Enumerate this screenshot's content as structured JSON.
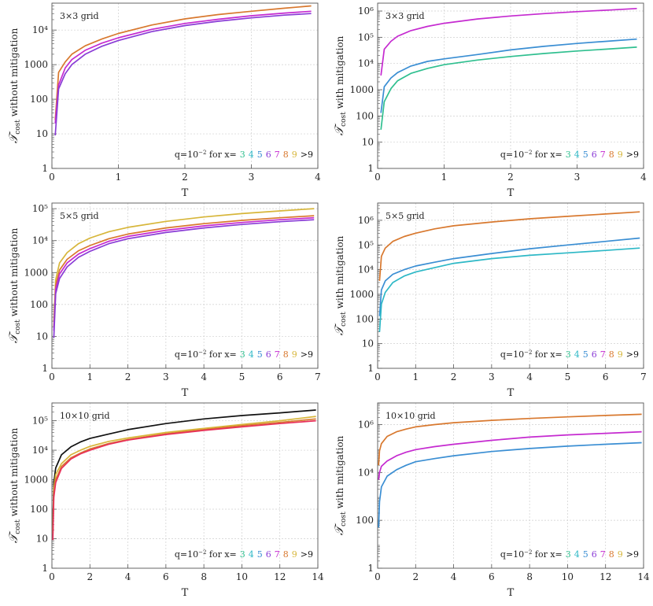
{
  "legend": {
    "prefix": "q=10",
    "exp": "−2",
    "for_x": " for x=",
    "items": [
      "3",
      "4",
      "5",
      "6",
      "7",
      "8",
      "9",
      ">9"
    ],
    "colors": [
      "#2fbf8f",
      "#2db8c6",
      "#3a8ed3",
      "#8a3cd6",
      "#c52ad0",
      "#d8782e",
      "#d7b63a",
      "#111111"
    ]
  },
  "chart_data": [
    {
      "type": "line",
      "panel": "A",
      "title": "3×3 grid",
      "xlabel": "T",
      "ylabel_prefix": "𝒯",
      "ylabel_sub": "cost",
      "ylabel_suffix": " without mitigation",
      "xlim": [
        0,
        4
      ],
      "ylog": [
        1,
        60000
      ],
      "xticks": [
        0,
        1,
        2,
        3,
        4
      ],
      "yticks": [
        {
          "v": 1,
          "t": "1"
        },
        {
          "v": 10,
          "t": "10"
        },
        {
          "v": 100,
          "t": "100"
        },
        {
          "v": 1000,
          "t": "1000"
        },
        {
          "v": 10000,
          "t": "10⁴"
        }
      ],
      "series": [
        {
          "name": "upper",
          "color": "#d8782e",
          "x": [
            0.05,
            0.1,
            0.2,
            0.3,
            0.5,
            0.75,
            1.0,
            1.5,
            2.0,
            2.5,
            3.0,
            3.5,
            3.9
          ],
          "values": [
            25,
            600,
            1200,
            2000,
            3500,
            5500,
            8000,
            14000,
            21000,
            28000,
            35000,
            43000,
            50000
          ]
        },
        {
          "name": "middle",
          "color": "#c52ad0",
          "x": [
            0.05,
            0.1,
            0.2,
            0.3,
            0.5,
            0.75,
            1.0,
            1.5,
            2.0,
            2.5,
            3.0,
            3.5,
            3.9
          ],
          "values": [
            20,
            260,
            800,
            1400,
            2600,
            4200,
            6000,
            10500,
            15500,
            20500,
            26000,
            31000,
            35000
          ]
        },
        {
          "name": "lower",
          "color": "#8a3cd6",
          "x": [
            0.05,
            0.1,
            0.2,
            0.3,
            0.5,
            0.75,
            1.0,
            1.5,
            2.0,
            2.5,
            3.0,
            3.5,
            3.9
          ],
          "values": [
            9,
            200,
            550,
            1000,
            2000,
            3400,
            5000,
            9000,
            13500,
            18000,
            22500,
            27000,
            30000
          ]
        }
      ]
    },
    {
      "type": "line",
      "panel": "B",
      "title": "3×3 grid",
      "xlabel": "T",
      "ylabel_prefix": "𝒯",
      "ylabel_sub": "cost",
      "ylabel_suffix": " with mitigation",
      "xlim": [
        0,
        4
      ],
      "ylog": [
        1,
        2000000
      ],
      "xticks": [
        0,
        1,
        2,
        3,
        4
      ],
      "yticks": [
        {
          "v": 1,
          "t": "1"
        },
        {
          "v": 10,
          "t": "10"
        },
        {
          "v": 100,
          "t": "100"
        },
        {
          "v": 1000,
          "t": "1000"
        },
        {
          "v": 10000,
          "t": "10⁴"
        },
        {
          "v": 100000,
          "t": "10⁵"
        },
        {
          "v": 1000000,
          "t": "10⁶"
        }
      ],
      "series": [
        {
          "name": "upper",
          "color": "#c52ad0",
          "x": [
            0.05,
            0.1,
            0.2,
            0.3,
            0.5,
            0.75,
            1.0,
            1.5,
            2.0,
            2.5,
            3.0,
            3.5,
            3.9
          ],
          "values": [
            3500,
            35000,
            70000,
            110000,
            180000,
            260000,
            340000,
            500000,
            650000,
            800000,
            950000,
            1100000,
            1250000
          ]
        },
        {
          "name": "middle",
          "color": "#3a8ed3",
          "x": [
            0.05,
            0.1,
            0.2,
            0.3,
            0.5,
            0.75,
            1.0,
            1.5,
            2.0,
            2.5,
            3.0,
            3.5,
            3.9
          ],
          "values": [
            130,
            1300,
            2800,
            4500,
            8000,
            12000,
            15000,
            22000,
            33000,
            45000,
            58000,
            72000,
            85000
          ]
        },
        {
          "name": "lower",
          "color": "#2fbf8f",
          "x": [
            0.05,
            0.1,
            0.2,
            0.3,
            0.5,
            0.75,
            1.0,
            1.5,
            2.0,
            2.5,
            3.0,
            3.5,
            3.9
          ],
          "values": [
            30,
            350,
            1100,
            2200,
            4200,
            6500,
            9000,
            13500,
            18500,
            24000,
            30000,
            36000,
            42000
          ]
        }
      ]
    },
    {
      "type": "line",
      "panel": "C",
      "title": "5×5 grid",
      "xlabel": "T",
      "ylabel_prefix": "𝒯",
      "ylabel_sub": "cost",
      "ylabel_suffix": " without mitigation",
      "xlim": [
        0,
        7
      ],
      "ylog": [
        1,
        150000
      ],
      "xticks": [
        0,
        1,
        2,
        3,
        4,
        5,
        6,
        7
      ],
      "yticks": [
        {
          "v": 1,
          "t": "1"
        },
        {
          "v": 10,
          "t": "10"
        },
        {
          "v": 100,
          "t": "100"
        },
        {
          "v": 1000,
          "t": "1000"
        },
        {
          "v": 10000,
          "t": "10⁴"
        },
        {
          "v": 100000,
          "t": "10⁵"
        }
      ],
      "series": [
        {
          "name": "upper",
          "color": "#d7b63a",
          "x": [
            0.05,
            0.1,
            0.2,
            0.4,
            0.7,
            1.0,
            1.5,
            2.0,
            3.0,
            4.0,
            5.0,
            6.0,
            6.9
          ],
          "values": [
            30,
            600,
            2000,
            4200,
            8000,
            12000,
            19000,
            26000,
            40000,
            55000,
            70000,
            85000,
            100000
          ]
        },
        {
          "name": "mid1",
          "color": "#d8782e",
          "x": [
            0.05,
            0.1,
            0.2,
            0.4,
            0.7,
            1.0,
            1.5,
            2.0,
            3.0,
            4.0,
            5.0,
            6.0,
            6.9
          ],
          "values": [
            20,
            400,
            1200,
            2600,
            4800,
            7000,
            11500,
            16000,
            25000,
            34000,
            43000,
            52000,
            60000
          ]
        },
        {
          "name": "mid2",
          "color": "#c52ad0",
          "x": [
            0.05,
            0.1,
            0.2,
            0.4,
            0.7,
            1.0,
            1.5,
            2.0,
            3.0,
            4.0,
            5.0,
            6.0,
            6.9
          ],
          "values": [
            15,
            300,
            900,
            2000,
            3800,
            5600,
            9500,
            13500,
            21000,
            29000,
            37000,
            45000,
            52000
          ]
        },
        {
          "name": "lower",
          "color": "#8a3cd6",
          "x": [
            0.05,
            0.1,
            0.2,
            0.4,
            0.7,
            1.0,
            1.5,
            2.0,
            3.0,
            4.0,
            5.0,
            6.0,
            6.9
          ],
          "values": [
            9,
            220,
            650,
            1500,
            3000,
            4600,
            8000,
            11500,
            18000,
            25000,
            32000,
            39000,
            45000
          ]
        }
      ]
    },
    {
      "type": "line",
      "panel": "D",
      "title": "5×5 grid",
      "xlabel": "T",
      "ylabel_prefix": "𝒯",
      "ylabel_sub": "cost",
      "ylabel_suffix": " with mitigation",
      "xlim": [
        0,
        7
      ],
      "ylog": [
        1,
        5000000
      ],
      "xticks": [
        0,
        1,
        2,
        3,
        4,
        5,
        6,
        7
      ],
      "yticks": [
        {
          "v": 1,
          "t": "1"
        },
        {
          "v": 10,
          "t": "10"
        },
        {
          "v": 100,
          "t": "100"
        },
        {
          "v": 1000,
          "t": "1000"
        },
        {
          "v": 10000,
          "t": "10⁴"
        },
        {
          "v": 100000,
          "t": "10⁵"
        },
        {
          "v": 1000000,
          "t": "10⁶"
        }
      ],
      "series": [
        {
          "name": "upper",
          "color": "#d8782e",
          "x": [
            0.05,
            0.1,
            0.2,
            0.4,
            0.7,
            1.0,
            1.5,
            2.0,
            3.0,
            4.0,
            5.0,
            6.0,
            6.9
          ],
          "values": [
            3500,
            35000,
            75000,
            140000,
            220000,
            300000,
            450000,
            600000,
            850000,
            1150000,
            1450000,
            1800000,
            2200000
          ]
        },
        {
          "name": "middle",
          "color": "#3a8ed3",
          "x": [
            0.05,
            0.1,
            0.2,
            0.4,
            0.7,
            1.0,
            1.5,
            2.0,
            3.0,
            4.0,
            5.0,
            6.0,
            6.9
          ],
          "values": [
            130,
            1500,
            3500,
            6500,
            10000,
            14000,
            20000,
            28000,
            45000,
            70000,
            100000,
            140000,
            190000
          ]
        },
        {
          "name": "lower",
          "color": "#2db8c6",
          "x": [
            0.05,
            0.1,
            0.2,
            0.4,
            0.7,
            1.0,
            1.5,
            2.0,
            3.0,
            4.0,
            5.0,
            6.0,
            6.9
          ],
          "values": [
            30,
            400,
            1200,
            3000,
            5500,
            8000,
            12000,
            18000,
            28000,
            38000,
            48000,
            60000,
            75000
          ]
        }
      ]
    },
    {
      "type": "line",
      "panel": "E",
      "title": "10×10 grid",
      "xlabel": "T",
      "ylabel_prefix": "𝒯",
      "ylabel_sub": "cost",
      "ylabel_suffix": " without mitigation",
      "xlim": [
        0,
        14
      ],
      "ylog": [
        1,
        400000
      ],
      "xticks": [
        0,
        2,
        4,
        6,
        8,
        10,
        12,
        14
      ],
      "yticks": [
        {
          "v": 1,
          "t": "1"
        },
        {
          "v": 10,
          "t": "10"
        },
        {
          "v": 100,
          "t": "100"
        },
        {
          "v": 1000,
          "t": "1000"
        },
        {
          "v": 10000,
          "t": "10⁴"
        },
        {
          "v": 100000,
          "t": "10⁵"
        }
      ],
      "series": [
        {
          "name": "top",
          "color": "#111111",
          "x": [
            0.05,
            0.1,
            0.2,
            0.5,
            1.0,
            1.5,
            2.0,
            2.8,
            4,
            6,
            8,
            10,
            12,
            13.9
          ],
          "values": [
            30,
            800,
            2500,
            7000,
            13000,
            19000,
            25000,
            33000,
            50000,
            80000,
            115000,
            150000,
            185000,
            230000
          ]
        },
        {
          "name": "upper",
          "color": "#d7b63a",
          "x": [
            0.05,
            0.1,
            0.2,
            0.5,
            1.0,
            1.5,
            2.0,
            3,
            4,
            6,
            8,
            10,
            12,
            13.9
          ],
          "values": [
            20,
            500,
            1500,
            3500,
            7000,
            10000,
            13500,
            20000,
            26000,
            40000,
            55000,
            75000,
            100000,
            140000
          ]
        },
        {
          "name": "mid",
          "color": "#d8782e",
          "x": [
            0.05,
            0.1,
            0.2,
            0.5,
            1.0,
            1.5,
            2.0,
            3,
            4,
            6,
            8,
            10,
            12,
            13.9
          ],
          "values": [
            15,
            350,
            1000,
            2800,
            5500,
            8000,
            11000,
            17000,
            23000,
            36000,
            50000,
            68000,
            88000,
            115000
          ]
        },
        {
          "name": "lower",
          "color": "#e8305a",
          "x": [
            0.05,
            0.1,
            0.2,
            0.5,
            1.0,
            1.5,
            2.0,
            3,
            4,
            6,
            8,
            10,
            12,
            13.9
          ],
          "values": [
            9,
            250,
            800,
            2400,
            5000,
            7500,
            10000,
            16000,
            22000,
            34000,
            47000,
            62000,
            80000,
            100000
          ]
        }
      ]
    },
    {
      "type": "line",
      "panel": "F",
      "title": "10×10 grid",
      "xlabel": "T",
      "ylabel_prefix": "𝒯",
      "ylabel_sub": "cost",
      "ylabel_suffix": " with mitigation",
      "xlim": [
        0,
        14
      ],
      "ylog": [
        1,
        8000000
      ],
      "xticks": [
        0,
        2,
        4,
        6,
        8,
        10,
        12,
        14
      ],
      "yticks": [
        {
          "v": 1,
          "t": "1"
        },
        {
          "v": 100,
          "t": "100"
        },
        {
          "v": 10000,
          "t": "10⁴"
        },
        {
          "v": 1000000,
          "t": "10⁶"
        }
      ],
      "series": [
        {
          "name": "upper",
          "color": "#d8782e",
          "x": [
            0.05,
            0.1,
            0.2,
            0.5,
            1.0,
            1.5,
            2.0,
            3,
            4,
            6,
            8,
            10,
            12,
            13.9
          ],
          "values": [
            20000,
            80000,
            160000,
            320000,
            500000,
            650000,
            800000,
            1000000,
            1200000,
            1500000,
            1800000,
            2100000,
            2400000,
            2700000
          ]
        },
        {
          "name": "middle",
          "color": "#c52ad0",
          "x": [
            0.05,
            0.1,
            0.2,
            0.5,
            1.0,
            1.5,
            2.0,
            3,
            4,
            6,
            8,
            10,
            12,
            13.9
          ],
          "values": [
            5000,
            10000,
            18000,
            30000,
            50000,
            70000,
            90000,
            120000,
            150000,
            220000,
            300000,
            370000,
            430000,
            500000
          ]
        },
        {
          "name": "lower",
          "color": "#3a8ed3",
          "x": [
            0.05,
            0.1,
            0.2,
            0.5,
            1.0,
            1.5,
            2.0,
            3,
            4,
            6,
            8,
            10,
            12,
            13.9
          ],
          "values": [
            50,
            600,
            2500,
            7000,
            13000,
            20000,
            28000,
            38000,
            50000,
            75000,
            100000,
            125000,
            150000,
            175000
          ]
        }
      ]
    }
  ]
}
